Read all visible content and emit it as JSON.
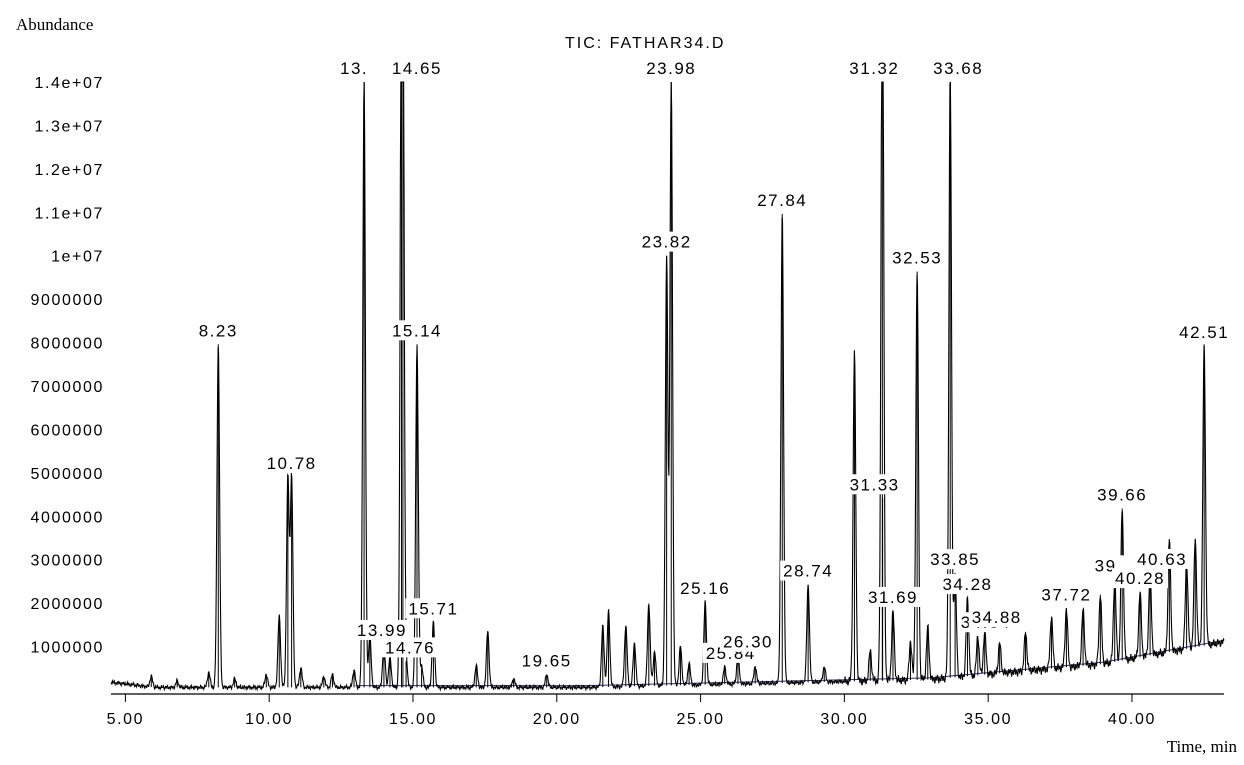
{
  "chart_data": {
    "type": "line",
    "title": "TIC: FATHAR34.D",
    "ylabel": "Abundance",
    "xlabel": "Time, min",
    "xlim": [
      4.5,
      43.2
    ],
    "ylim": [
      0,
      14500000
    ],
    "x_ticks": [
      5,
      10,
      15,
      20,
      25,
      30,
      35,
      40
    ],
    "x_tick_labels": [
      "5.00",
      "10.00",
      "15.00",
      "20.00",
      "25.00",
      "30.00",
      "35.00",
      "40.00"
    ],
    "y_ticks": [
      1000000,
      2000000,
      3000000,
      4000000,
      5000000,
      6000000,
      7000000,
      8000000,
      9000000,
      10000000,
      11000000,
      12000000,
      13000000,
      14000000
    ],
    "y_tick_labels": [
      "1000000",
      "2000000",
      "3000000",
      "4000000",
      "5000000",
      "6000000",
      "7000000",
      "8000000",
      "9000000",
      "1e+07",
      "1.1e+07",
      "1.2e+07",
      "1.3e+07",
      "1.4e+07"
    ],
    "peaks": [
      {
        "rt": 5.9,
        "height": 250000,
        "label": ""
      },
      {
        "rt": 6.8,
        "height": 150000,
        "label": ""
      },
      {
        "rt": 7.9,
        "height": 350000,
        "label": ""
      },
      {
        "rt": 8.23,
        "height": 7900000,
        "label": "8.23"
      },
      {
        "rt": 8.8,
        "height": 200000,
        "label": ""
      },
      {
        "rt": 9.9,
        "height": 300000,
        "label": ""
      },
      {
        "rt": 10.35,
        "height": 1650000,
        "label": ""
      },
      {
        "rt": 10.65,
        "height": 4850000,
        "label": ""
      },
      {
        "rt": 10.78,
        "height": 4850000,
        "label": "10.78"
      },
      {
        "rt": 11.1,
        "height": 450000,
        "label": ""
      },
      {
        "rt": 11.9,
        "height": 250000,
        "label": ""
      },
      {
        "rt": 12.2,
        "height": 300000,
        "label": ""
      },
      {
        "rt": 12.95,
        "height": 400000,
        "label": ""
      },
      {
        "rt": 13.3,
        "height": 14000000,
        "label": "13."
      },
      {
        "rt": 13.5,
        "height": 1200000,
        "label": ""
      },
      {
        "rt": 13.99,
        "height": 1000000,
        "label": "13.99"
      },
      {
        "rt": 14.2,
        "height": 700000,
        "label": ""
      },
      {
        "rt": 14.6,
        "height": 14000000,
        "label": ""
      },
      {
        "rt": 14.65,
        "height": 14000000,
        "label": "14.65"
      },
      {
        "rt": 14.76,
        "height": 600000,
        "label": "14.76"
      },
      {
        "rt": 15.14,
        "height": 7900000,
        "label": "15.14"
      },
      {
        "rt": 15.3,
        "height": 500000,
        "label": ""
      },
      {
        "rt": 15.71,
        "height": 1500000,
        "label": "15.71"
      },
      {
        "rt": 17.2,
        "height": 500000,
        "label": ""
      },
      {
        "rt": 17.6,
        "height": 1300000,
        "label": ""
      },
      {
        "rt": 18.5,
        "height": 200000,
        "label": ""
      },
      {
        "rt": 19.65,
        "height": 300000,
        "label": "19.65"
      },
      {
        "rt": 21.6,
        "height": 1400000,
        "label": ""
      },
      {
        "rt": 21.8,
        "height": 1750000,
        "label": ""
      },
      {
        "rt": 22.4,
        "height": 1400000,
        "label": ""
      },
      {
        "rt": 22.7,
        "height": 1000000,
        "label": ""
      },
      {
        "rt": 23.2,
        "height": 1900000,
        "label": ""
      },
      {
        "rt": 23.4,
        "height": 800000,
        "label": ""
      },
      {
        "rt": 23.82,
        "height": 9900000,
        "label": "23.82"
      },
      {
        "rt": 23.98,
        "height": 14000000,
        "label": "23.98"
      },
      {
        "rt": 24.3,
        "height": 900000,
        "label": ""
      },
      {
        "rt": 24.6,
        "height": 500000,
        "label": ""
      },
      {
        "rt": 25.16,
        "height": 1900000,
        "label": "25.16"
      },
      {
        "rt": 25.84,
        "height": 400000,
        "label": "25.84"
      },
      {
        "rt": 26.3,
        "height": 650000,
        "label": "26.30"
      },
      {
        "rt": 26.9,
        "height": 400000,
        "label": ""
      },
      {
        "rt": 27.84,
        "height": 10800000,
        "label": "27.84"
      },
      {
        "rt": 28.74,
        "height": 2250000,
        "label": "28.74"
      },
      {
        "rt": 29.3,
        "height": 350000,
        "label": ""
      },
      {
        "rt": 30.35,
        "height": 7600000,
        "label": ""
      },
      {
        "rt": 30.9,
        "height": 700000,
        "label": ""
      },
      {
        "rt": 31.32,
        "height": 14000000,
        "label": "31.32"
      },
      {
        "rt": 31.33,
        "height": 4200000,
        "label": "31.33"
      },
      {
        "rt": 31.69,
        "height": 1600000,
        "label": "31.69"
      },
      {
        "rt": 32.3,
        "height": 900000,
        "label": ""
      },
      {
        "rt": 32.53,
        "height": 9400000,
        "label": "32.53"
      },
      {
        "rt": 32.9,
        "height": 1200000,
        "label": ""
      },
      {
        "rt": 33.68,
        "height": 14000000,
        "label": "33.68"
      },
      {
        "rt": 33.85,
        "height": 2400000,
        "label": "33.85"
      },
      {
        "rt": 34.28,
        "height": 1800000,
        "label": "34.28"
      },
      {
        "rt": 34.64,
        "height": 900000,
        "label": "34.64"
      },
      {
        "rt": 34.88,
        "height": 1000000,
        "label": "34.88"
      },
      {
        "rt": 35.4,
        "height": 700000,
        "label": ""
      },
      {
        "rt": 36.3,
        "height": 900000,
        "label": ""
      },
      {
        "rt": 37.2,
        "height": 1200000,
        "label": ""
      },
      {
        "rt": 37.72,
        "height": 1350000,
        "label": "37.72"
      },
      {
        "rt": 38.3,
        "height": 1300000,
        "label": ""
      },
      {
        "rt": 38.9,
        "height": 1600000,
        "label": ""
      },
      {
        "rt": 39.4,
        "height": 1900000,
        "label": "39."
      },
      {
        "rt": 39.66,
        "height": 3500000,
        "label": "39.66"
      },
      {
        "rt": 40.28,
        "height": 1500000,
        "label": "40.28"
      },
      {
        "rt": 40.63,
        "height": 1900000,
        "label": "40.63"
      },
      {
        "rt": 41.3,
        "height": 2600000,
        "label": ""
      },
      {
        "rt": 41.9,
        "height": 2000000,
        "label": ""
      },
      {
        "rt": 42.2,
        "height": 2500000,
        "label": ""
      },
      {
        "rt": 42.51,
        "height": 6900000,
        "label": "42.51"
      }
    ]
  }
}
